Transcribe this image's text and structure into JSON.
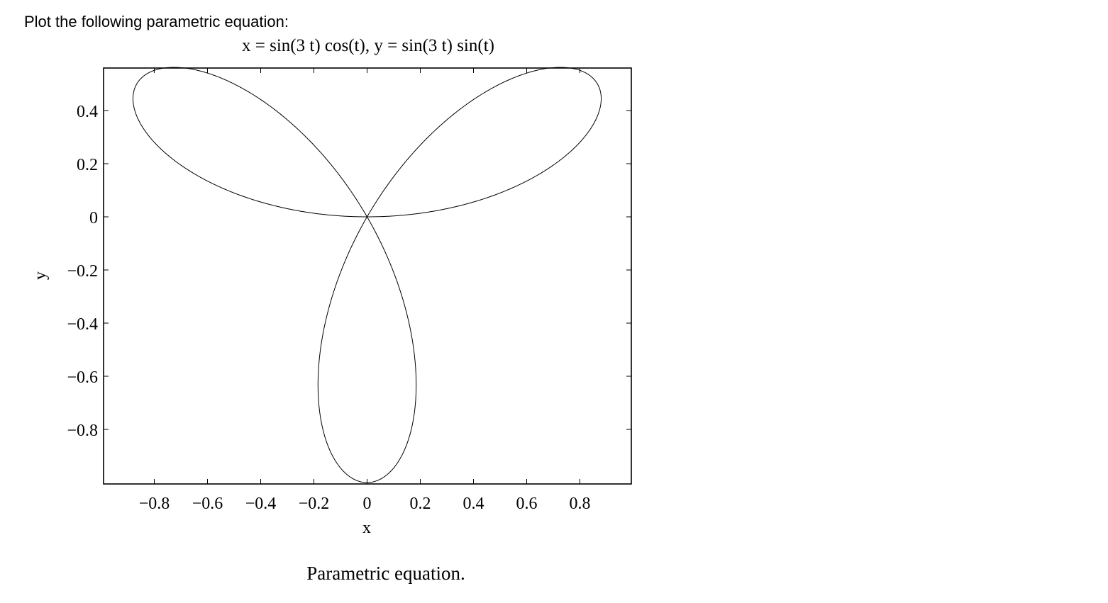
{
  "prompt": "Plot the following parametric equation:",
  "caption": "Parametric equation.",
  "chart_data": {
    "type": "line",
    "title": "x = sin(3 t) cos(t), y = sin(3 t) sin(t)",
    "xlabel": "x",
    "ylabel": "y",
    "xlim": [
      -0.98,
      0.98
    ],
    "ylim": [
      -1.0,
      0.56
    ],
    "xticks": [
      -0.8,
      -0.6,
      -0.4,
      -0.2,
      0,
      0.2,
      0.4,
      0.6,
      0.8
    ],
    "xticklabels": [
      "−0.8",
      "−0.6",
      "−0.4",
      "−0.2",
      "0",
      "0.2",
      "0.4",
      "0.6",
      "0.8"
    ],
    "yticks": [
      0.4,
      0.2,
      0,
      -0.2,
      -0.4,
      -0.6,
      -0.8
    ],
    "yticklabels": [
      "0.4",
      "0.2",
      "0",
      "−0.2",
      "−0.4",
      "−0.6",
      "−0.8"
    ],
    "grid": false,
    "series": [
      {
        "equation": "three-petal rose curve",
        "t_range": [
          0,
          3.14159
        ],
        "color": "#000000"
      }
    ]
  }
}
